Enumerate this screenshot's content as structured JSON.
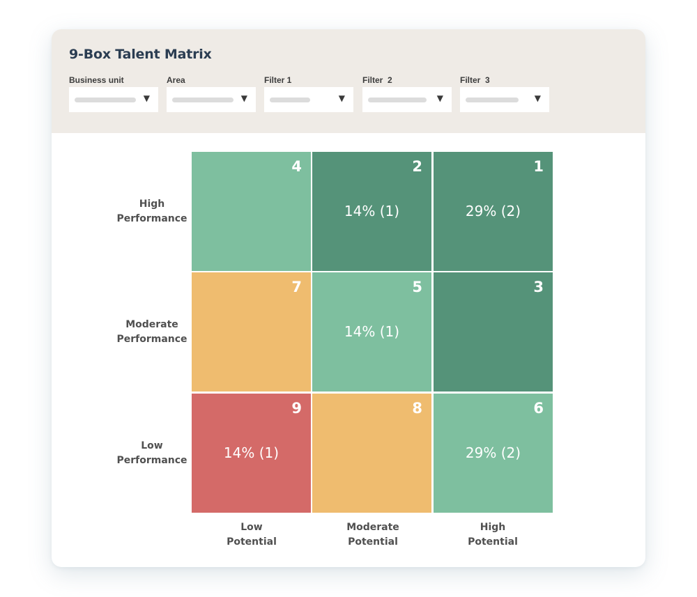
{
  "title": "9-Box Talent Matrix",
  "filters": [
    {
      "label": "Business unit",
      "caret": "▼"
    },
    {
      "label": "Area",
      "caret": "▼"
    },
    {
      "label": "Filter 1",
      "caret": "▼"
    },
    {
      "label": "Filter  2",
      "caret": "▼"
    },
    {
      "label": "Filter  3",
      "caret": "▼"
    }
  ],
  "colors": {
    "dark_green": "#559379",
    "light_green": "#7ebf9f",
    "amber": "#efbc6f",
    "red": "#d46a68"
  },
  "rows": [
    {
      "line1": "High",
      "line2": "Performance"
    },
    {
      "line1": "Moderate",
      "line2": "Performance"
    },
    {
      "line1": "Low",
      "line2": "Performance"
    }
  ],
  "columns": [
    {
      "line1": "Low",
      "line2": "Potential"
    },
    {
      "line1": "Moderate",
      "line2": "Potential"
    },
    {
      "line1": "High",
      "line2": "Potential"
    }
  ],
  "cells": [
    [
      {
        "number": "4",
        "value": "",
        "color": "#7ebf9f"
      },
      {
        "number": "2",
        "value": "14% (1)",
        "color": "#559379"
      },
      {
        "number": "1",
        "value": "29% (2)",
        "color": "#559379"
      }
    ],
    [
      {
        "number": "7",
        "value": "",
        "color": "#efbc6f"
      },
      {
        "number": "5",
        "value": "14% (1)",
        "color": "#7ebf9f"
      },
      {
        "number": "3",
        "value": "",
        "color": "#559379"
      }
    ],
    [
      {
        "number": "9",
        "value": "14% (1)",
        "color": "#d46a68"
      },
      {
        "number": "8",
        "value": "",
        "color": "#efbc6f"
      },
      {
        "number": "6",
        "value": "29% (2)",
        "color": "#7ebf9f"
      }
    ]
  ]
}
